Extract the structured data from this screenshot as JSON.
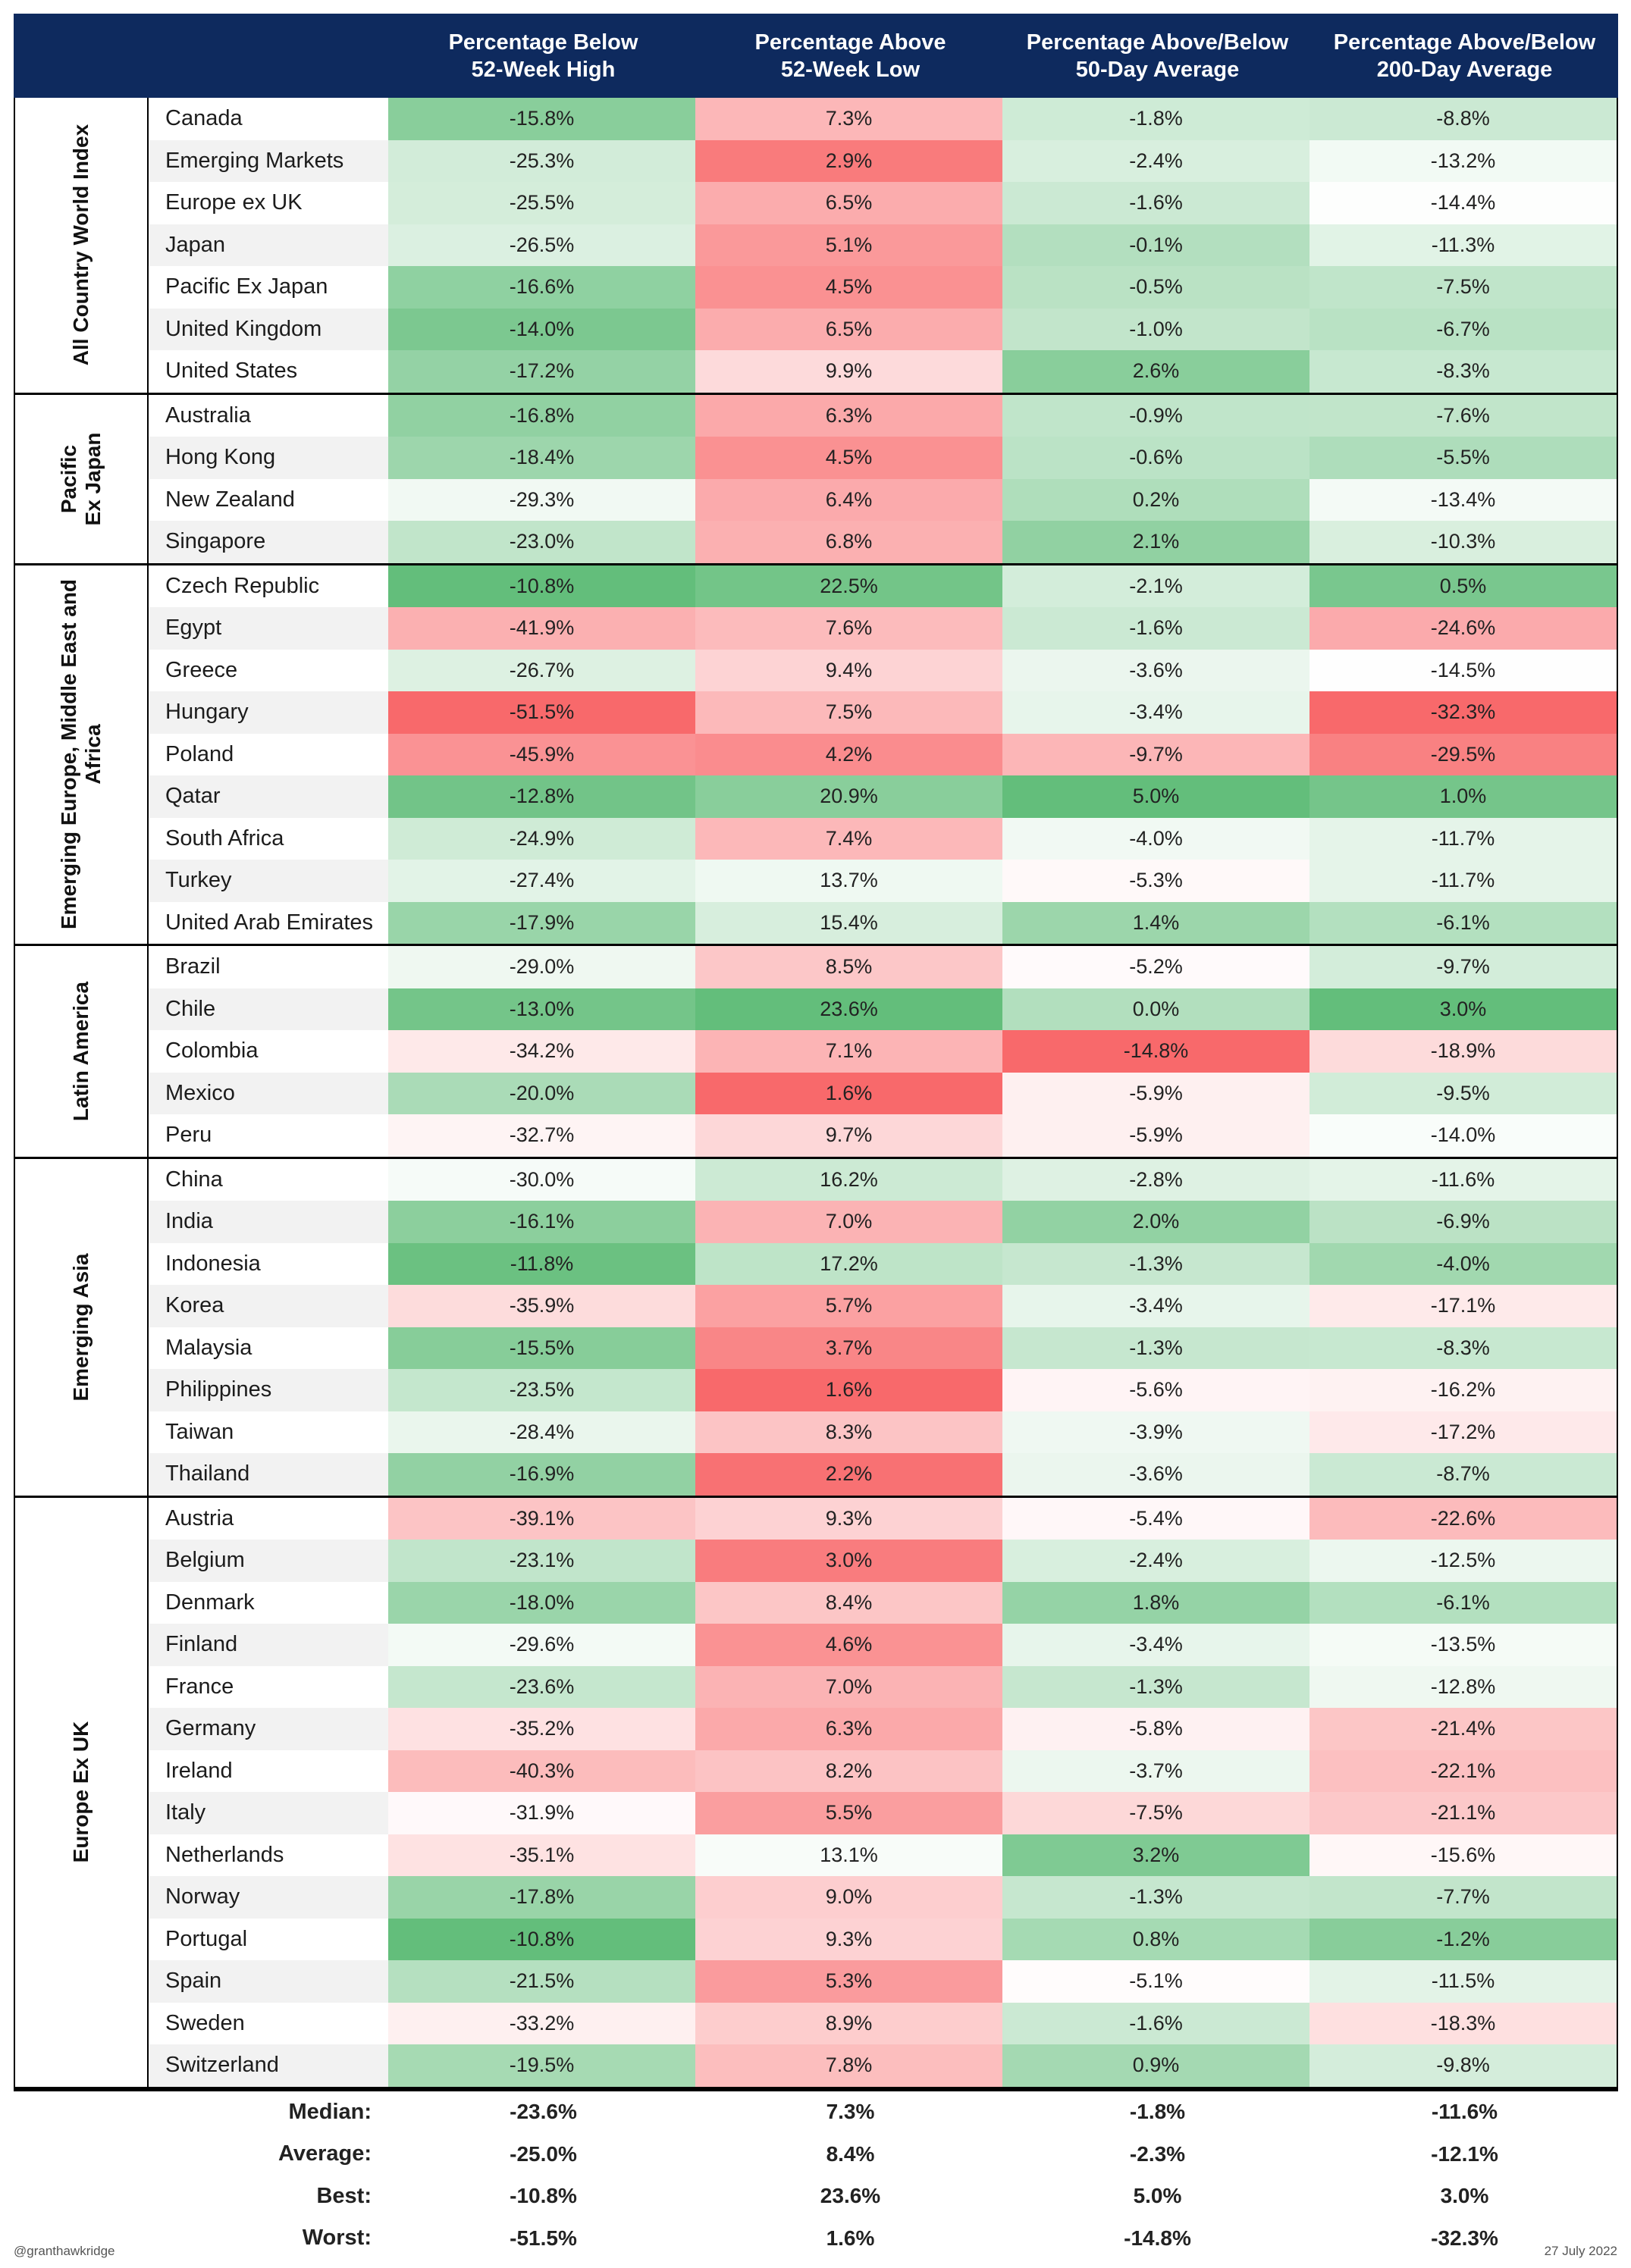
{
  "chart_data": {
    "type": "table",
    "columns": [
      "Percentage Below\n52-Week High",
      "Percentage Above\n52-Week Low",
      "Percentage Above/Below\n50-Day Average",
      "Percentage Above/Below\n200-Day Average"
    ],
    "groups": [
      {
        "name": "All Country World Index",
        "rows": [
          {
            "name": "Canada",
            "values": [
              -15.8,
              7.3,
              -1.8,
              -8.8
            ],
            "labels": [
              "-15.8%",
              "7.3%",
              "-1.8%",
              "-8.8%"
            ]
          },
          {
            "name": "Emerging Markets",
            "values": [
              -25.3,
              2.9,
              -2.4,
              -13.2
            ],
            "labels": [
              "-25.3%",
              "2.9%",
              "-2.4%",
              "-13.2%"
            ]
          },
          {
            "name": "Europe ex UK",
            "values": [
              -25.5,
              6.5,
              -1.6,
              -14.4
            ],
            "labels": [
              "-25.5%",
              "6.5%",
              "-1.6%",
              "-14.4%"
            ]
          },
          {
            "name": "Japan",
            "values": [
              -26.5,
              5.1,
              -0.1,
              -11.3
            ],
            "labels": [
              "-26.5%",
              "5.1%",
              "-0.1%",
              "-11.3%"
            ]
          },
          {
            "name": "Pacific Ex Japan",
            "values": [
              -16.6,
              4.5,
              -0.5,
              -7.5
            ],
            "labels": [
              "-16.6%",
              "4.5%",
              "-0.5%",
              "-7.5%"
            ]
          },
          {
            "name": "United Kingdom",
            "values": [
              -14.0,
              6.5,
              -1.0,
              -6.7
            ],
            "labels": [
              "-14.0%",
              "6.5%",
              "-1.0%",
              "-6.7%"
            ]
          },
          {
            "name": "United States",
            "values": [
              -17.2,
              9.9,
              2.6,
              -8.3
            ],
            "labels": [
              "-17.2%",
              "9.9%",
              "2.6%",
              "-8.3%"
            ]
          }
        ]
      },
      {
        "name": "Pacific\nEx Japan",
        "rows": [
          {
            "name": "Australia",
            "values": [
              -16.8,
              6.3,
              -0.9,
              -7.6
            ],
            "labels": [
              "-16.8%",
              "6.3%",
              "-0.9%",
              "-7.6%"
            ]
          },
          {
            "name": "Hong Kong",
            "values": [
              -18.4,
              4.5,
              -0.6,
              -5.5
            ],
            "labels": [
              "-18.4%",
              "4.5%",
              "-0.6%",
              "-5.5%"
            ]
          },
          {
            "name": "New Zealand",
            "values": [
              -29.3,
              6.4,
              0.2,
              -13.4
            ],
            "labels": [
              "-29.3%",
              "6.4%",
              "0.2%",
              "-13.4%"
            ]
          },
          {
            "name": "Singapore",
            "values": [
              -23.0,
              6.8,
              2.1,
              -10.3
            ],
            "labels": [
              "-23.0%",
              "6.8%",
              "2.1%",
              "-10.3%"
            ]
          }
        ]
      },
      {
        "name": "Emerging Europe, Middle East and\nAfrica",
        "rows": [
          {
            "name": "Czech Republic",
            "values": [
              -10.8,
              22.5,
              -2.1,
              0.5
            ],
            "labels": [
              "-10.8%",
              "22.5%",
              "-2.1%",
              "0.5%"
            ]
          },
          {
            "name": "Egypt",
            "values": [
              -41.9,
              7.6,
              -1.6,
              -24.6
            ],
            "labels": [
              "-41.9%",
              "7.6%",
              "-1.6%",
              "-24.6%"
            ]
          },
          {
            "name": "Greece",
            "values": [
              -26.7,
              9.4,
              -3.6,
              -14.5
            ],
            "labels": [
              "-26.7%",
              "9.4%",
              "-3.6%",
              "-14.5%"
            ]
          },
          {
            "name": "Hungary",
            "values": [
              -51.5,
              7.5,
              -3.4,
              -32.3
            ],
            "labels": [
              "-51.5%",
              "7.5%",
              "-3.4%",
              "-32.3%"
            ]
          },
          {
            "name": "Poland",
            "values": [
              -45.9,
              4.2,
              -9.7,
              -29.5
            ],
            "labels": [
              "-45.9%",
              "4.2%",
              "-9.7%",
              "-29.5%"
            ]
          },
          {
            "name": "Qatar",
            "values": [
              -12.8,
              20.9,
              5.0,
              1.0
            ],
            "labels": [
              "-12.8%",
              "20.9%",
              "5.0%",
              "1.0%"
            ]
          },
          {
            "name": "South Africa",
            "values": [
              -24.9,
              7.4,
              -4.0,
              -11.7
            ],
            "labels": [
              "-24.9%",
              "7.4%",
              "-4.0%",
              "-11.7%"
            ]
          },
          {
            "name": "Turkey",
            "values": [
              -27.4,
              13.7,
              -5.3,
              -11.7
            ],
            "labels": [
              "-27.4%",
              "13.7%",
              "-5.3%",
              "-11.7%"
            ]
          },
          {
            "name": "United Arab Emirates",
            "values": [
              -17.9,
              15.4,
              1.4,
              -6.1
            ],
            "labels": [
              "-17.9%",
              "15.4%",
              "1.4%",
              "-6.1%"
            ]
          }
        ]
      },
      {
        "name": "Latin America",
        "rows": [
          {
            "name": "Brazil",
            "values": [
              -29.0,
              8.5,
              -5.2,
              -9.7
            ],
            "labels": [
              "-29.0%",
              "8.5%",
              "-5.2%",
              "-9.7%"
            ]
          },
          {
            "name": "Chile",
            "values": [
              -13.0,
              23.6,
              0.0,
              3.0
            ],
            "labels": [
              "-13.0%",
              "23.6%",
              "0.0%",
              "3.0%"
            ]
          },
          {
            "name": "Colombia",
            "values": [
              -34.2,
              7.1,
              -14.8,
              -18.9
            ],
            "labels": [
              "-34.2%",
              "7.1%",
              "-14.8%",
              "-18.9%"
            ]
          },
          {
            "name": "Mexico",
            "values": [
              -20.0,
              1.6,
              -5.9,
              -9.5
            ],
            "labels": [
              "-20.0%",
              "1.6%",
              "-5.9%",
              "-9.5%"
            ]
          },
          {
            "name": "Peru",
            "values": [
              -32.7,
              9.7,
              -5.9,
              -14.0
            ],
            "labels": [
              "-32.7%",
              "9.7%",
              "-5.9%",
              "-14.0%"
            ]
          }
        ]
      },
      {
        "name": "Emerging Asia",
        "rows": [
          {
            "name": "China",
            "values": [
              -30.0,
              16.2,
              -2.8,
              -11.6
            ],
            "labels": [
              "-30.0%",
              "16.2%",
              "-2.8%",
              "-11.6%"
            ]
          },
          {
            "name": "India",
            "values": [
              -16.1,
              7.0,
              2.0,
              -6.9
            ],
            "labels": [
              "-16.1%",
              "7.0%",
              "2.0%",
              "-6.9%"
            ]
          },
          {
            "name": "Indonesia",
            "values": [
              -11.8,
              17.2,
              -1.3,
              -4.0
            ],
            "labels": [
              "-11.8%",
              "17.2%",
              "-1.3%",
              "-4.0%"
            ]
          },
          {
            "name": "Korea",
            "values": [
              -35.9,
              5.7,
              -3.4,
              -17.1
            ],
            "labels": [
              "-35.9%",
              "5.7%",
              "-3.4%",
              "-17.1%"
            ]
          },
          {
            "name": "Malaysia",
            "values": [
              -15.5,
              3.7,
              -1.3,
              -8.3
            ],
            "labels": [
              "-15.5%",
              "3.7%",
              "-1.3%",
              "-8.3%"
            ]
          },
          {
            "name": "Philippines",
            "values": [
              -23.5,
              1.6,
              -5.6,
              -16.2
            ],
            "labels": [
              "-23.5%",
              "1.6%",
              "-5.6%",
              "-16.2%"
            ]
          },
          {
            "name": "Taiwan",
            "values": [
              -28.4,
              8.3,
              -3.9,
              -17.2
            ],
            "labels": [
              "-28.4%",
              "8.3%",
              "-3.9%",
              "-17.2%"
            ]
          },
          {
            "name": "Thailand",
            "values": [
              -16.9,
              2.2,
              -3.6,
              -8.7
            ],
            "labels": [
              "-16.9%",
              "2.2%",
              "-3.6%",
              "-8.7%"
            ]
          }
        ]
      },
      {
        "name": "Europe Ex UK",
        "rows": [
          {
            "name": "Austria",
            "values": [
              -39.1,
              9.3,
              -5.4,
              -22.6
            ],
            "labels": [
              "-39.1%",
              "9.3%",
              "-5.4%",
              "-22.6%"
            ]
          },
          {
            "name": "Belgium",
            "values": [
              -23.1,
              3.0,
              -2.4,
              -12.5
            ],
            "labels": [
              "-23.1%",
              "3.0%",
              "-2.4%",
              "-12.5%"
            ]
          },
          {
            "name": "Denmark",
            "values": [
              -18.0,
              8.4,
              1.8,
              -6.1
            ],
            "labels": [
              "-18.0%",
              "8.4%",
              "1.8%",
              "-6.1%"
            ]
          },
          {
            "name": "Finland",
            "values": [
              -29.6,
              4.6,
              -3.4,
              -13.5
            ],
            "labels": [
              "-29.6%",
              "4.6%",
              "-3.4%",
              "-13.5%"
            ]
          },
          {
            "name": "France",
            "values": [
              -23.6,
              7.0,
              -1.3,
              -12.8
            ],
            "labels": [
              "-23.6%",
              "7.0%",
              "-1.3%",
              "-12.8%"
            ]
          },
          {
            "name": "Germany",
            "values": [
              -35.2,
              6.3,
              -5.8,
              -21.4
            ],
            "labels": [
              "-35.2%",
              "6.3%",
              "-5.8%",
              "-21.4%"
            ]
          },
          {
            "name": "Ireland",
            "values": [
              -40.3,
              8.2,
              -3.7,
              -22.1
            ],
            "labels": [
              "-40.3%",
              "8.2%",
              "-3.7%",
              "-22.1%"
            ]
          },
          {
            "name": "Italy",
            "values": [
              -31.9,
              5.5,
              -7.5,
              -21.1
            ],
            "labels": [
              "-31.9%",
              "5.5%",
              "-7.5%",
              "-21.1%"
            ]
          },
          {
            "name": "Netherlands",
            "values": [
              -35.1,
              13.1,
              3.2,
              -15.6
            ],
            "labels": [
              "-35.1%",
              "13.1%",
              "3.2%",
              "-15.6%"
            ]
          },
          {
            "name": "Norway",
            "values": [
              -17.8,
              9.0,
              -1.3,
              -7.7
            ],
            "labels": [
              "-17.8%",
              "9.0%",
              "-1.3%",
              "-7.7%"
            ]
          },
          {
            "name": "Portugal",
            "values": [
              -10.8,
              9.3,
              0.8,
              -1.2
            ],
            "labels": [
              "-10.8%",
              "9.3%",
              "0.8%",
              "-1.2%"
            ]
          },
          {
            "name": "Spain",
            "values": [
              -21.5,
              5.3,
              -5.1,
              -11.5
            ],
            "labels": [
              "-21.5%",
              "5.3%",
              "-5.1%",
              "-11.5%"
            ]
          },
          {
            "name": "Sweden",
            "values": [
              -33.2,
              8.9,
              -1.6,
              -18.3
            ],
            "labels": [
              "-33.2%",
              "8.9%",
              "-1.6%",
              "-18.3%"
            ]
          },
          {
            "name": "Switzerland",
            "values": [
              -19.5,
              7.8,
              0.9,
              -9.8
            ],
            "labels": [
              "-19.5%",
              "7.8%",
              "0.9%",
              "-9.8%"
            ]
          }
        ]
      }
    ],
    "summary": [
      {
        "label": "Median:",
        "labels": [
          "-23.6%",
          "7.3%",
          "-1.8%",
          "-11.6%"
        ]
      },
      {
        "label": "Average:",
        "labels": [
          "-25.0%",
          "8.4%",
          "-2.3%",
          "-12.1%"
        ]
      },
      {
        "label": "Best:",
        "labels": [
          "-10.8%",
          "23.6%",
          "5.0%",
          "3.0%"
        ]
      },
      {
        "label": "Worst:",
        "labels": [
          "-51.5%",
          "1.6%",
          "-14.8%",
          "-32.3%"
        ]
      }
    ],
    "colors": {
      "header_bg": "#0e2a5e",
      "negative": "#f8696b",
      "positive": "#63be7b",
      "neutral": "#ffffff"
    }
  },
  "footer": {
    "left": "@granthawkridge",
    "right": "27 July 2022"
  }
}
